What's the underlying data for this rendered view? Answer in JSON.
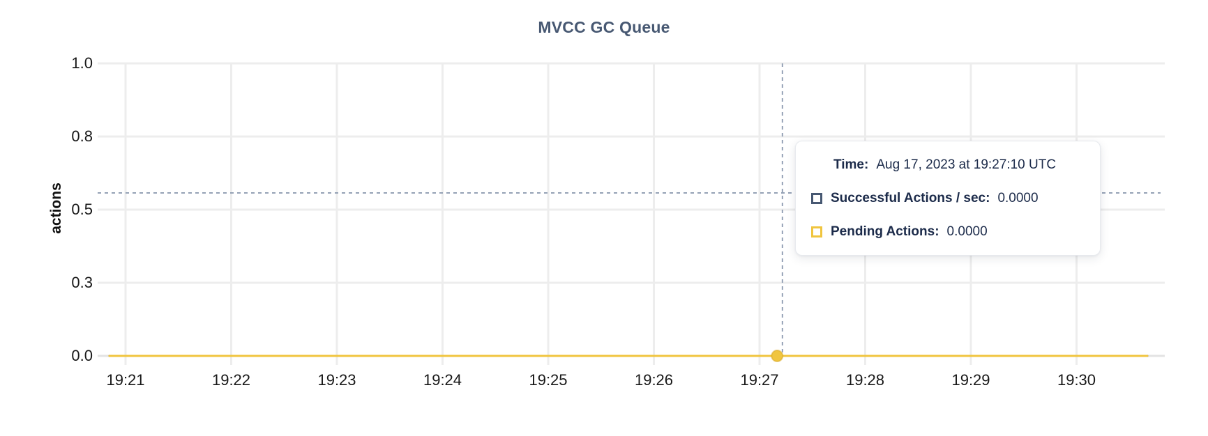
{
  "chart_data": {
    "type": "line",
    "title": "MVCC GC Queue",
    "xlabel": "",
    "ylabel": "actions",
    "ylim": [
      0,
      1.0
    ],
    "grid": true,
    "y_ticks": [
      {
        "label": "0.0",
        "value": 0.0
      },
      {
        "label": "0.3",
        "value": 0.25
      },
      {
        "label": "0.5",
        "value": 0.5
      },
      {
        "label": "0.8",
        "value": 0.75
      },
      {
        "label": "1.0",
        "value": 1.0
      }
    ],
    "x_ticks": [
      "19:21",
      "19:22",
      "19:23",
      "19:24",
      "19:25",
      "19:26",
      "19:27",
      "19:28",
      "19:29",
      "19:30"
    ],
    "series": [
      {
        "name": "Successful Actions / sec",
        "color": "#475872",
        "constant_value": 0.0
      },
      {
        "name": "Pending Actions",
        "color": "#f0c53f",
        "constant_value": 0.0
      }
    ],
    "hover": {
      "snap_time": "19:27:10",
      "snap_value": 0.0,
      "cursor_time": "19:27:13",
      "cursor_value": 0.557
    }
  },
  "tooltip": {
    "time_label": "Time:",
    "time_value": "Aug 17, 2023 at 19:27:10 UTC",
    "rows": [
      {
        "label": "Successful Actions / sec:",
        "value": "0.0000",
        "color": "#475872"
      },
      {
        "label": "Pending Actions:",
        "value": "0.0000",
        "color": "#f0c53f"
      }
    ]
  },
  "colors": {
    "title": "#475872",
    "tooltip_text": "#1c2b4a",
    "series_yellow": "#f0c53f",
    "series_navy": "#475872",
    "gridline": "#ededed",
    "baseline": "#e3e3e3",
    "crosshair": "#94a1b5"
  }
}
